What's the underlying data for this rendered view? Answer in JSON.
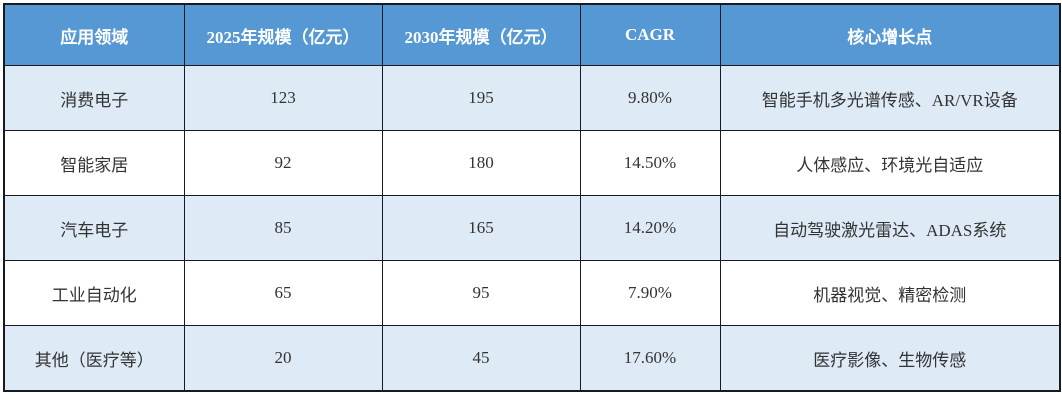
{
  "table": {
    "header": [
      "应用领域",
      "2025年规模（亿元）",
      "2030年规模（亿元）",
      "CAGR",
      "核心增长点"
    ],
    "rows": [
      [
        "消费电子",
        "123",
        "195",
        "9.80%",
        "智能手机多光谱传感、AR/VR设备"
      ],
      [
        "智能家居",
        "92",
        "180",
        "14.50%",
        "人体感应、环境光自适应"
      ],
      [
        "汽车电子",
        "85",
        "165",
        "14.20%",
        "自动驾驶激光雷达、ADAS系统"
      ],
      [
        "工业自动化",
        "65",
        "95",
        "7.90%",
        "机器视觉、精密检测"
      ],
      [
        "其他（医疗等）",
        "20",
        "45",
        "17.60%",
        "医疗影像、生物传感"
      ]
    ],
    "colors": {
      "header_bg": "#5598d4",
      "header_text": "#ffffff",
      "row_alt_bg": "#deeaf6",
      "row_bg": "#ffffff",
      "border": "#171a21",
      "body_text": "#333333"
    }
  },
  "chart_data": {
    "type": "table",
    "title": "",
    "columns": [
      "应用领域",
      "2025年规模（亿元）",
      "2030年规模（亿元）",
      "CAGR",
      "核心增长点"
    ],
    "categories": [
      "消费电子",
      "智能家居",
      "汽车电子",
      "工业自动化",
      "其他（医疗等）"
    ],
    "series": [
      {
        "name": "2025年规模（亿元）",
        "values": [
          123,
          92,
          85,
          65,
          20
        ]
      },
      {
        "name": "2030年规模（亿元）",
        "values": [
          195,
          180,
          165,
          95,
          45
        ]
      },
      {
        "name": "CAGR(%)",
        "values": [
          9.8,
          14.5,
          14.2,
          7.9,
          17.6
        ]
      }
    ],
    "growth_points": [
      "智能手机多光谱传感、AR/VR设备",
      "人体感应、环境光自适应",
      "自动驾驶激光雷达、ADAS系统",
      "机器视觉、精密检测",
      "医疗影像、生物传感"
    ]
  }
}
